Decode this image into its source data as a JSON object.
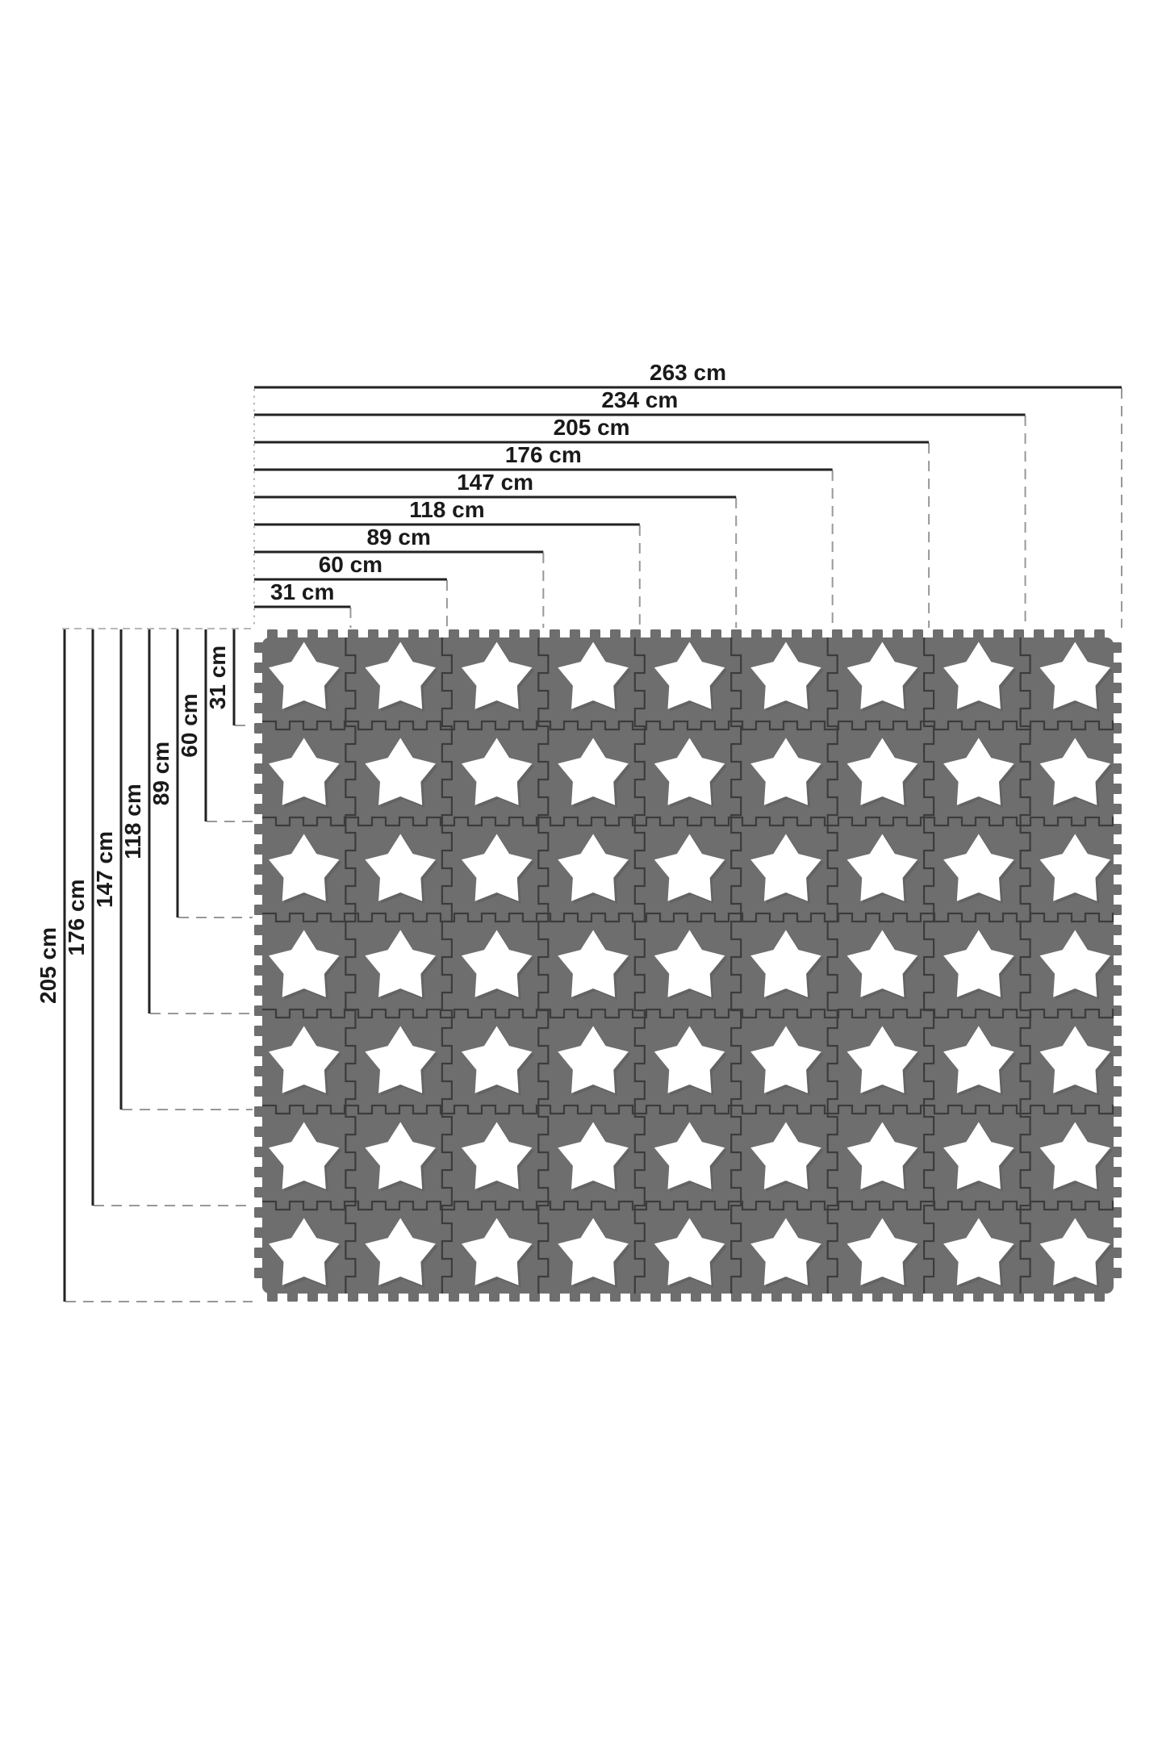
{
  "page": {
    "background": "#ffffff",
    "description": "foam-play-mat-dimension-diagram"
  },
  "diagram": {
    "unit": "cm",
    "mat": {
      "rows": 7,
      "cols": 9,
      "tile_motif": "star",
      "first_tile_cm": 31,
      "increment_cm": 29,
      "colors": {
        "tile": "#6e6e6e",
        "seam": "#3c3c3c",
        "star": "#ffffff",
        "star_shadow": "#565656"
      }
    },
    "top_dimensions": [
      {
        "label": "263 cm",
        "tiles": 9
      },
      {
        "label": "234 cm",
        "tiles": 8
      },
      {
        "label": "205 cm",
        "tiles": 7
      },
      {
        "label": "176 cm",
        "tiles": 6
      },
      {
        "label": "147 cm",
        "tiles": 5
      },
      {
        "label": "118 cm",
        "tiles": 4
      },
      {
        "label": "89 cm",
        "tiles": 3
      },
      {
        "label": "60 cm",
        "tiles": 2
      },
      {
        "label": "31 cm",
        "tiles": 1
      }
    ],
    "left_dimensions": [
      {
        "label": "205 cm",
        "tiles": 7
      },
      {
        "label": "176 cm",
        "tiles": 6
      },
      {
        "label": "147 cm",
        "tiles": 5
      },
      {
        "label": "118 cm",
        "tiles": 4
      },
      {
        "label": "89 cm",
        "tiles": 3
      },
      {
        "label": "60 cm",
        "tiles": 2
      },
      {
        "label": "31 cm",
        "tiles": 1
      }
    ],
    "style": {
      "dim_line_color": "#222222",
      "dashed_color": "#989898",
      "dotted_color": "#b8b8b8",
      "label_color": "#1a1a1a"
    }
  }
}
